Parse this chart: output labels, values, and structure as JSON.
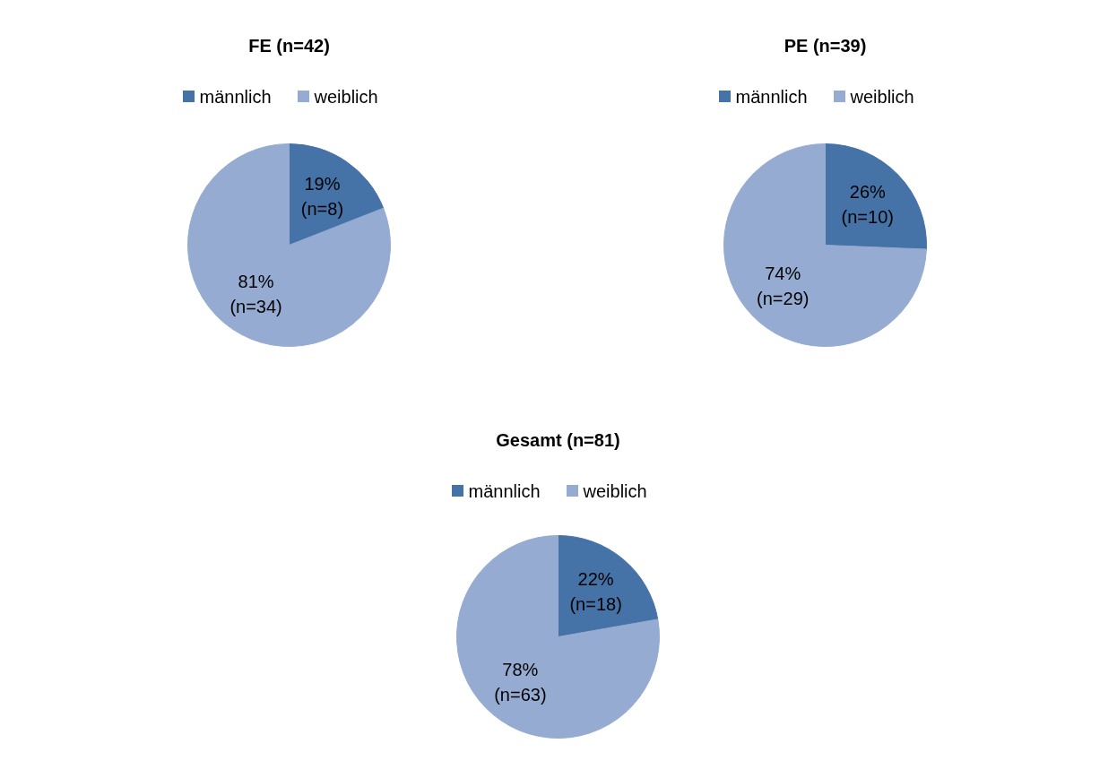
{
  "chart_data": [
    {
      "type": "pie",
      "title": "FE (n=42)",
      "categories": [
        "männlich",
        "weiblich"
      ],
      "values": [
        8,
        34
      ],
      "colors": [
        "#4572a7",
        "#95abd1"
      ],
      "value_labels": [
        "19%\n(n=8)",
        "81%\n(n=34)"
      ],
      "legend": "top"
    },
    {
      "type": "pie",
      "title": "PE (n=39)",
      "categories": [
        "männlich",
        "weiblich"
      ],
      "values": [
        10,
        29
      ],
      "colors": [
        "#4572a7",
        "#95abd1"
      ],
      "value_labels": [
        "26%\n(n=10)",
        "74%\n(n=29)"
      ],
      "legend": "top"
    },
    {
      "type": "pie",
      "title": "Gesamt (n=81)",
      "categories": [
        "männlich",
        "weiblich"
      ],
      "values": [
        18,
        63
      ],
      "colors": [
        "#4572a7",
        "#95abd1"
      ],
      "value_labels": [
        "22%\n(n=18)",
        "78%\n(n=63)"
      ],
      "legend": "top"
    }
  ]
}
